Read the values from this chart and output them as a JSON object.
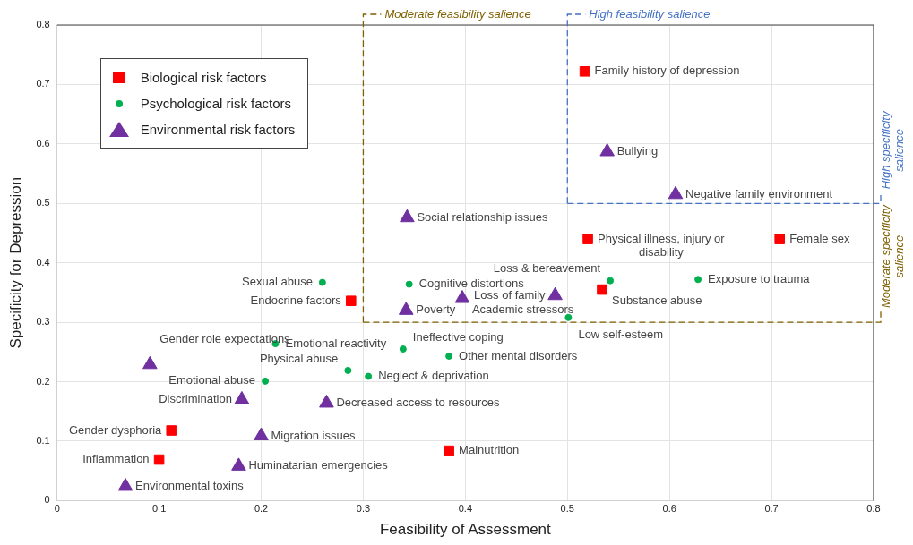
{
  "chart_data": {
    "type": "scatter",
    "xlabel": "Feasibility of Assessment",
    "ylabel": "Specificity for Depression",
    "xlim": [
      0,
      0.8
    ],
    "ylim": [
      0,
      0.8
    ],
    "xticks": [
      0,
      0.1,
      0.2,
      0.3,
      0.4,
      0.5,
      0.6,
      0.7,
      0.8
    ],
    "yticks": [
      0,
      0.1,
      0.2,
      0.3,
      0.4,
      0.5,
      0.6,
      0.7,
      0.8
    ],
    "grid": true,
    "legend": "top left",
    "series": [
      {
        "name": "Biological risk factors",
        "color": "#ff0000",
        "marker": "square",
        "x": [
          0.517,
          0.52,
          0.708,
          0.288,
          0.534,
          0.112,
          0.1,
          0.384
        ],
        "values": [
          0.722,
          0.44,
          0.44,
          0.336,
          0.355,
          0.118,
          0.069,
          0.084
        ]
      },
      {
        "name": "Psychological risk factors",
        "color": "#00b050",
        "marker": "circle",
        "x": [
          0.26,
          0.345,
          0.542,
          0.628,
          0.501,
          0.214,
          0.339,
          0.384,
          0.285,
          0.204,
          0.305
        ],
        "values": [
          0.367,
          0.364,
          0.37,
          0.372,
          0.308,
          0.264,
          0.255,
          0.243,
          0.219,
          0.201,
          0.209
        ]
      },
      {
        "name": "Environmental risk factors",
        "color": "#7030a0",
        "marker": "triangle",
        "x": [
          0.539,
          0.606,
          0.343,
          0.397,
          0.488,
          0.342,
          0.091,
          0.181,
          0.264,
          0.2,
          0.178,
          0.067
        ],
        "values": [
          0.587,
          0.515,
          0.476,
          0.34,
          0.345,
          0.32,
          0.229,
          0.17,
          0.164,
          0.109,
          0.058,
          0.024
        ]
      }
    ],
    "ref_lines": [
      {
        "axis": "x",
        "value": 0.3,
        "label": "Moderate feasibility salience",
        "color": "#7f6000",
        "line_style": "dashed"
      },
      {
        "axis": "x",
        "value": 0.5,
        "label": "High feasibility salience",
        "color": "#4472c4",
        "line_style": "dashed"
      },
      {
        "axis": "y",
        "value": 0.5,
        "label": "High specificity salience",
        "color": "#4472c4",
        "line_style": "dashed"
      },
      {
        "axis": "y",
        "value": 0.3,
        "label": "Moderate specificity salience",
        "color": "#7f6000",
        "line_style": "dashed"
      }
    ],
    "annotations": [
      {
        "text": "Family history of depression",
        "x": 0.517,
        "y": 0.722
      },
      {
        "text": "Physical illness, injury or disability",
        "x": 0.52,
        "y": 0.44
      },
      {
        "text": "Female sex",
        "x": 0.708,
        "y": 0.44
      },
      {
        "text": "Endocrine factors",
        "x": 0.288,
        "y": 0.336
      },
      {
        "text": "Substance abuse",
        "x": 0.534,
        "y": 0.355
      },
      {
        "text": "Gender dysphoria",
        "x": 0.112,
        "y": 0.118
      },
      {
        "text": "Inflammation",
        "x": 0.1,
        "y": 0.069
      },
      {
        "text": "Malnutrition",
        "x": 0.384,
        "y": 0.084
      },
      {
        "text": "Sexual abuse",
        "x": 0.26,
        "y": 0.367
      },
      {
        "text": "Cognitive distortions",
        "x": 0.345,
        "y": 0.364
      },
      {
        "text": "Loss & bereavement",
        "x": 0.542,
        "y": 0.37
      },
      {
        "text": "Exposure to trauma",
        "x": 0.628,
        "y": 0.372
      },
      {
        "text": "Low self-esteem",
        "x": 0.501,
        "y": 0.308
      },
      {
        "text": "Emotional reactivity",
        "x": 0.214,
        "y": 0.264
      },
      {
        "text": "Ineffective coping",
        "x": 0.339,
        "y": 0.255
      },
      {
        "text": "Other mental disorders",
        "x": 0.384,
        "y": 0.243
      },
      {
        "text": "Physical abuse",
        "x": 0.285,
        "y": 0.219
      },
      {
        "text": "Emotional abuse",
        "x": 0.204,
        "y": 0.201
      },
      {
        "text": "Neglect & deprivation",
        "x": 0.305,
        "y": 0.209
      },
      {
        "text": "Bullying",
        "x": 0.539,
        "y": 0.587
      },
      {
        "text": "Negative family environment",
        "x": 0.606,
        "y": 0.515
      },
      {
        "text": "Social relationship issues",
        "x": 0.343,
        "y": 0.476
      },
      {
        "text": "Academic stressors",
        "x": 0.397,
        "y": 0.34
      },
      {
        "text": "Loss of family",
        "x": 0.488,
        "y": 0.345
      },
      {
        "text": "Poverty",
        "x": 0.342,
        "y": 0.32
      },
      {
        "text": "Gender role expectations",
        "x": 0.091,
        "y": 0.229
      },
      {
        "text": "Discrimination",
        "x": 0.181,
        "y": 0.17
      },
      {
        "text": "Decreased access to resources",
        "x": 0.264,
        "y": 0.164
      },
      {
        "text": "Migration issues",
        "x": 0.2,
        "y": 0.109
      },
      {
        "text": "Huminatarian emergencies",
        "x": 0.178,
        "y": 0.058
      },
      {
        "text": "Environmental toxins",
        "x": 0.067,
        "y": 0.024
      }
    ]
  }
}
